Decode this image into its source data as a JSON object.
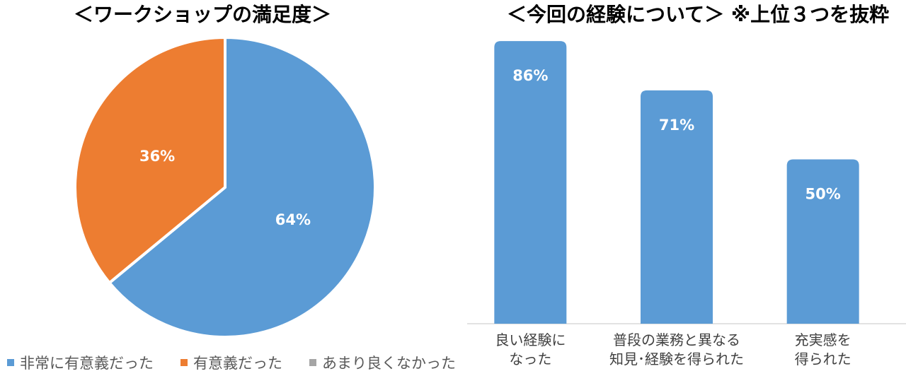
{
  "chart_data": [
    {
      "type": "pie",
      "title": "＜ワークショップの満足度＞",
      "labels": [
        "非常に有意義だった",
        "有意義だった",
        "あまり良くなかった"
      ],
      "values": [
        64,
        36,
        0
      ],
      "data_labels": [
        "64%",
        "36%",
        ""
      ],
      "colors": [
        "#5B9BD5",
        "#ED7D31",
        "#A5A5A5"
      ],
      "legend_position": "bottom"
    },
    {
      "type": "bar",
      "title": "＜今回の経験について＞ ※上位３つを抜粋",
      "categories": [
        "良い経験になった",
        "普段の業務と異なる知見・経験を得られた",
        "充実感を得られた"
      ],
      "category_lines": [
        [
          "良い経験に",
          "なった"
        ],
        [
          "普段の業務と異なる",
          "知見･経験を得られた"
        ],
        [
          "充実感を",
          "得られた"
        ]
      ],
      "values": [
        86,
        71,
        50
      ],
      "data_labels": [
        "86%",
        "71%",
        "50%"
      ],
      "color": "#5B9BD5",
      "ylim": [
        0,
        100
      ],
      "grid": false
    }
  ]
}
